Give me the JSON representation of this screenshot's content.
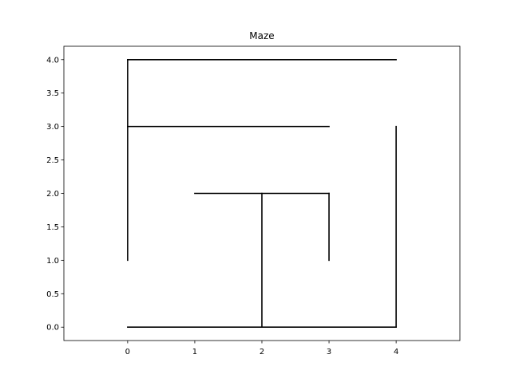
{
  "chart_data": {
    "type": "line",
    "title": "Maze",
    "xlabel": "",
    "ylabel": "",
    "xlim": [
      -0.95,
      4.95
    ],
    "ylim": [
      -0.2,
      4.2
    ],
    "x_ticks": [
      0,
      1,
      2,
      3,
      4
    ],
    "x_tick_labels": [
      "0",
      "1",
      "2",
      "3",
      "4"
    ],
    "y_ticks": [
      0.0,
      0.5,
      1.0,
      1.5,
      2.0,
      2.5,
      3.0,
      3.5,
      4.0
    ],
    "y_tick_labels": [
      "0.0",
      "0.5",
      "1.0",
      "1.5",
      "2.0",
      "2.5",
      "3.0",
      "3.5",
      "4.0"
    ],
    "grid": false,
    "legend": "none",
    "line_color": "#000000",
    "segments": [
      {
        "x": [
          0,
          4
        ],
        "y": [
          4,
          4
        ]
      },
      {
        "x": [
          0,
          0
        ],
        "y": [
          1,
          4
        ]
      },
      {
        "x": [
          0,
          3
        ],
        "y": [
          3,
          3
        ]
      },
      {
        "x": [
          4,
          4
        ],
        "y": [
          0,
          3
        ]
      },
      {
        "x": [
          1,
          3
        ],
        "y": [
          2,
          2
        ]
      },
      {
        "x": [
          3,
          3
        ],
        "y": [
          1,
          2
        ]
      },
      {
        "x": [
          2,
          2
        ],
        "y": [
          0,
          2
        ]
      },
      {
        "x": [
          0,
          4
        ],
        "y": [
          0,
          0
        ]
      }
    ]
  }
}
